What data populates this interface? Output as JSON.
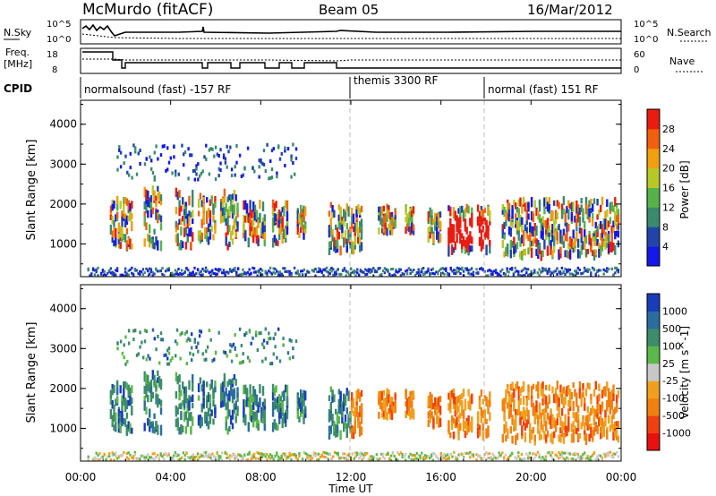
{
  "header": {
    "station": "McMurdo (fitACF)",
    "beam": "Beam 05",
    "date": "16/Mar/2012"
  },
  "summary_panels": {
    "nsky": {
      "label": "N.Sky",
      "ticks": [
        "10^5",
        "10^0"
      ]
    },
    "nsearch": {
      "label": "N.Search",
      "ticks": [
        "10^5",
        "10^0"
      ]
    },
    "freq": {
      "label": "Freq.",
      "unit": "[MHz]",
      "ticks": [
        "18",
        "8"
      ]
    },
    "nave": {
      "label": "Nave",
      "ticks": [
        "60",
        "0"
      ]
    },
    "cpid": {
      "label": "CPID",
      "segments": [
        {
          "name": "normalsound (fast) -157 RF",
          "start_h": 0,
          "end_h": 12
        },
        {
          "name": "themis 3300 RF",
          "start_h": 12,
          "end_h": 18
        },
        {
          "name": "normal (fast) 151 RF",
          "start_h": 18,
          "end_h": 24
        }
      ]
    }
  },
  "chart_data": [
    {
      "type": "heatmap",
      "title": "",
      "parameter": "Power",
      "ylabel": "Slant Range [km]",
      "xlabel": "",
      "x_ticks": [
        "00:00",
        "04:00",
        "08:00",
        "12:00",
        "16:00",
        "20:00",
        "00:00"
      ],
      "x_range_h": [
        0,
        24
      ],
      "y_ticks": [
        1000,
        2000,
        3000,
        4000
      ],
      "ylim": [
        180,
        4600
      ],
      "colorbar": {
        "label": "Power [dB]",
        "ticks": [
          "4",
          "8",
          "12",
          "16",
          "20",
          "24",
          "28"
        ],
        "colors": [
          "#1418e8",
          "#2244a8",
          "#3a8a6e",
          "#58b24a",
          "#b8c828",
          "#f0a010",
          "#f06010",
          "#e81c10"
        ]
      }
    },
    {
      "type": "heatmap",
      "title": "",
      "parameter": "Velocity",
      "ylabel": "Slant Range [km]",
      "xlabel": "Time UT",
      "x_ticks": [
        "00:00",
        "04:00",
        "08:00",
        "12:00",
        "16:00",
        "20:00",
        "00:00"
      ],
      "x_range_h": [
        0,
        24
      ],
      "y_ticks": [
        1000,
        2000,
        3000,
        4000
      ],
      "ylim": [
        180,
        4600
      ],
      "colorbar": {
        "label": "Velocity [m s^-1]",
        "ticks": [
          "1000",
          "500",
          "100",
          "25",
          "-25",
          "-100",
          "-500",
          "-1000"
        ],
        "colors": [
          "#1a3cb8",
          "#2a6ea0",
          "#3e8c6a",
          "#5cb848",
          "#c8c8c8",
          "#f0a020",
          "#f08010",
          "#f04010",
          "#e81010"
        ]
      }
    }
  ]
}
